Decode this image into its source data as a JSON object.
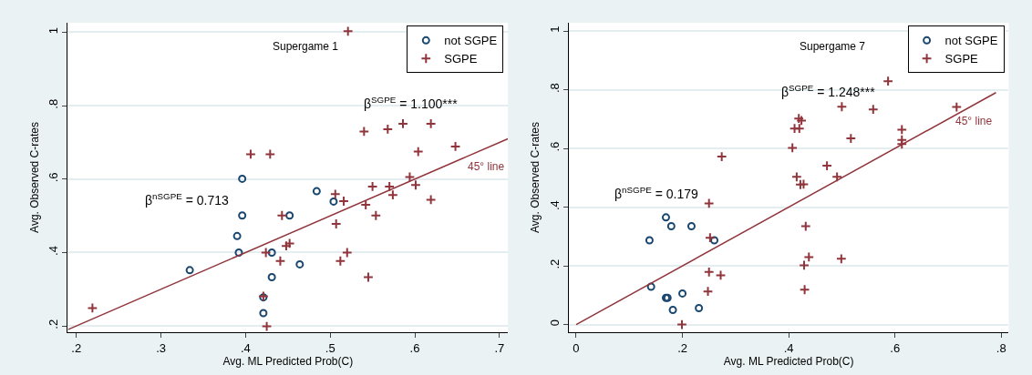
{
  "chart_data": [
    {
      "type": "scatter",
      "title": "Supergame 1",
      "xlabel": "Avg. ML Predicted Prob(C)",
      "ylabel": "Avg. Observed C-rates",
      "annotations": [
        "β$^{nSGPE}$ = 0.713",
        "β$^{SGPE}$ = 1.100***"
      ],
      "xlim": [
        0.19,
        0.71
      ],
      "ylim": [
        0.183,
        1.026
      ],
      "xticks": [
        {
          "value": 0.2,
          "label": ".2"
        },
        {
          "value": 0.3,
          "label": ".3"
        },
        {
          "value": 0.4,
          "label": ".4"
        },
        {
          "value": 0.5,
          "label": ".5"
        },
        {
          "value": 0.6,
          "label": ".6"
        },
        {
          "value": 0.7,
          "label": ".7"
        }
      ],
      "yticks": [
        {
          "value": 0.2,
          "label": ".2"
        },
        {
          "value": 0.4,
          "label": ".4"
        },
        {
          "value": 0.6,
          "label": ".6"
        },
        {
          "value": 0.8,
          "label": ".8"
        },
        1
      ],
      "grid": "y",
      "legend": "top right",
      "series": [
        {
          "name": "not SGPE",
          "color": "#1a476f",
          "marker": "circle",
          "x": [
            0.334,
            0.396,
            0.396,
            0.39,
            0.392,
            0.431,
            0.431,
            0.421,
            0.421,
            0.452,
            0.484,
            0.504,
            0.464
          ],
          "values": [
            0.352,
            0.601,
            0.501,
            0.445,
            0.4,
            0.4,
            0.333,
            0.278,
            0.235,
            0.501,
            0.567,
            0.539,
            0.368
          ]
        },
        {
          "name": "SGPE",
          "color": "#90353b",
          "marker": "cross",
          "x": [
            0.219,
            0.406,
            0.429,
            0.443,
            0.424,
            0.441,
            0.448,
            0.452,
            0.421,
            0.425,
            0.521,
            0.54,
            0.568,
            0.586,
            0.619,
            0.648,
            0.604,
            0.594,
            0.601,
            0.619,
            0.55,
            0.57,
            0.574,
            0.506,
            0.516,
            0.542,
            0.554,
            0.507,
            0.52,
            0.512,
            0.545
          ],
          "values": [
            0.249,
            0.668,
            0.668,
            0.501,
            0.4,
            0.377,
            0.418,
            0.425,
            0.281,
            0.199,
            1.003,
            0.73,
            0.736,
            0.751,
            0.751,
            0.689,
            0.675,
            0.606,
            0.584,
            0.544,
            0.58,
            0.58,
            0.557,
            0.559,
            0.54,
            0.53,
            0.501,
            0.478,
            0.4,
            0.377,
            0.333
          ]
        },
        {
          "name": "45° line",
          "type": "line",
          "color": "#90353b",
          "marker": "none",
          "x": [
            0.19,
            0.71
          ],
          "values": [
            0.19,
            0.71
          ]
        }
      ]
    },
    {
      "type": "scatter",
      "title": "Supergame 7",
      "xlabel": "Avg. ML Predicted Prob(C)",
      "ylabel": "Avg. Observed C-rates",
      "annotations": [
        "β$^{nSGPE}$ = 0.179",
        "β$^{SGPE}$ = 1.248***"
      ],
      "xlim": [
        -0.014,
        0.814
      ],
      "ylim": [
        -0.026,
        1.028
      ],
      "xticks": [
        0,
        {
          "value": 0.2,
          "label": ".2"
        },
        {
          "value": 0.4,
          "label": ".4"
        },
        {
          "value": 0.6,
          "label": ".6"
        },
        {
          "value": 0.8,
          "label": ".8"
        }
      ],
      "yticks": [
        0,
        {
          "value": 0.2,
          "label": ".2"
        },
        {
          "value": 0.4,
          "label": ".4"
        },
        {
          "value": 0.6,
          "label": ".6"
        },
        {
          "value": 0.8,
          "label": ".8"
        },
        1
      ],
      "grid": "y",
      "legend": "top right",
      "series": [
        {
          "name": "not SGPE",
          "color": "#1a476f",
          "marker": "circle",
          "x": [
            0.138,
            0.141,
            0.169,
            0.179,
            0.217,
            0.169,
            0.172,
            0.182,
            0.2,
            0.231,
            0.26
          ],
          "values": [
            0.287,
            0.129,
            0.365,
            0.335,
            0.335,
            0.091,
            0.091,
            0.05,
            0.106,
            0.056,
            0.287
          ]
        },
        {
          "name": "SGPE",
          "color": "#90353b",
          "marker": "cross",
          "x": [
            0.274,
            0.25,
            0.252,
            0.25,
            0.272,
            0.248,
            0.199,
            0.587,
            0.5,
            0.559,
            0.716,
            0.419,
            0.424,
            0.411,
            0.42,
            0.407,
            0.517,
            0.613,
            0.613,
            0.613,
            0.472,
            0.491,
            0.415,
            0.422,
            0.428,
            0.432,
            0.438,
            0.429,
            0.499,
            0.43
          ],
          "values": [
            0.572,
            0.413,
            0.296,
            0.179,
            0.168,
            0.113,
            0.0,
            0.829,
            0.742,
            0.733,
            0.741,
            0.702,
            0.695,
            0.668,
            0.668,
            0.602,
            0.634,
            0.664,
            0.629,
            0.615,
            0.541,
            0.503,
            0.503,
            0.477,
            0.478,
            0.335,
            0.23,
            0.202,
            0.224,
            0.119
          ]
        },
        {
          "name": "45° line",
          "type": "line",
          "color": "#90353b",
          "marker": "none",
          "x": [
            0.0,
            0.79
          ],
          "values": [
            0.0,
            0.79
          ]
        }
      ]
    }
  ]
}
